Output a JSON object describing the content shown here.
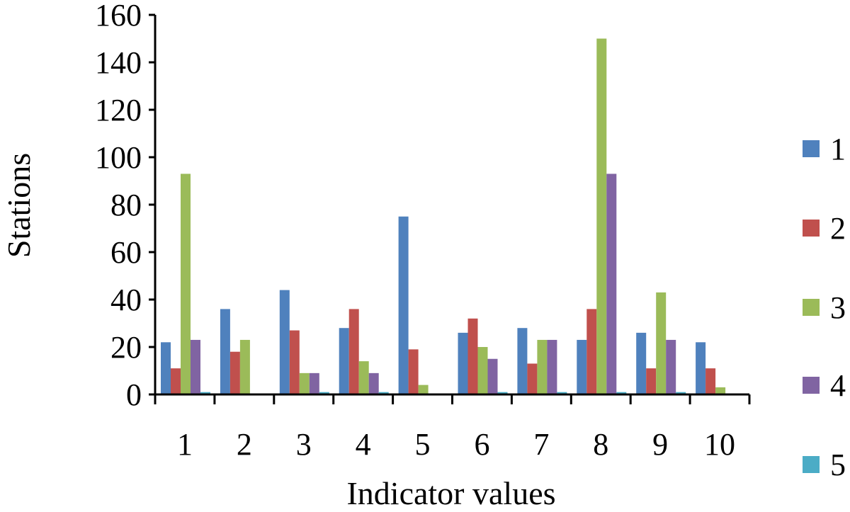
{
  "chart_data": {
    "type": "bar",
    "title": "",
    "xlabel": "Indicator values",
    "ylabel": "Stations",
    "categories": [
      "1",
      "2",
      "3",
      "4",
      "5",
      "6",
      "7",
      "8",
      "9",
      "10"
    ],
    "ylim": [
      0,
      160
    ],
    "yticks": [
      0,
      20,
      40,
      60,
      80,
      100,
      120,
      140,
      160
    ],
    "grid": false,
    "legend_position": "right",
    "series": [
      {
        "name": "1",
        "color": "#4F81BD",
        "values": [
          22,
          36,
          44,
          28,
          75,
          26,
          28,
          23,
          26,
          22
        ]
      },
      {
        "name": "2",
        "color": "#C0504D",
        "values": [
          11,
          18,
          27,
          36,
          19,
          32,
          13,
          36,
          11,
          11
        ]
      },
      {
        "name": "3",
        "color": "#9BBB59",
        "values": [
          93,
          23,
          9,
          14,
          4,
          20,
          23,
          150,
          43,
          3
        ]
      },
      {
        "name": "4",
        "color": "#8064A2",
        "values": [
          23,
          0,
          9,
          9,
          0,
          15,
          23,
          93,
          23,
          0
        ]
      },
      {
        "name": "5",
        "color": "#4BACC6",
        "values": [
          1,
          0,
          1,
          1,
          0,
          1,
          1,
          1,
          1,
          0
        ]
      }
    ]
  }
}
